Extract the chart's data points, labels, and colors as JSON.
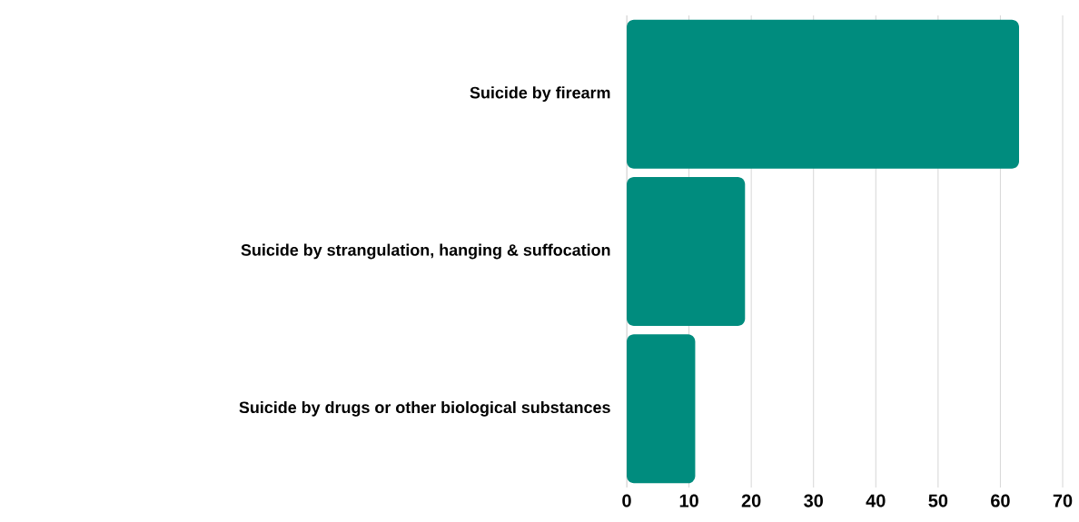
{
  "chart_data": {
    "type": "bar",
    "orientation": "horizontal",
    "categories": [
      "Suicide by firearm",
      "Suicide by strangulation, hanging & suffocation",
      "Suicide by drugs or other biological substances"
    ],
    "values": [
      63,
      19,
      11
    ],
    "color": "#008c7e",
    "xlim": [
      0,
      70
    ],
    "xticks": [
      0,
      10,
      20,
      30,
      40,
      50,
      60,
      70
    ],
    "grid": "x"
  }
}
